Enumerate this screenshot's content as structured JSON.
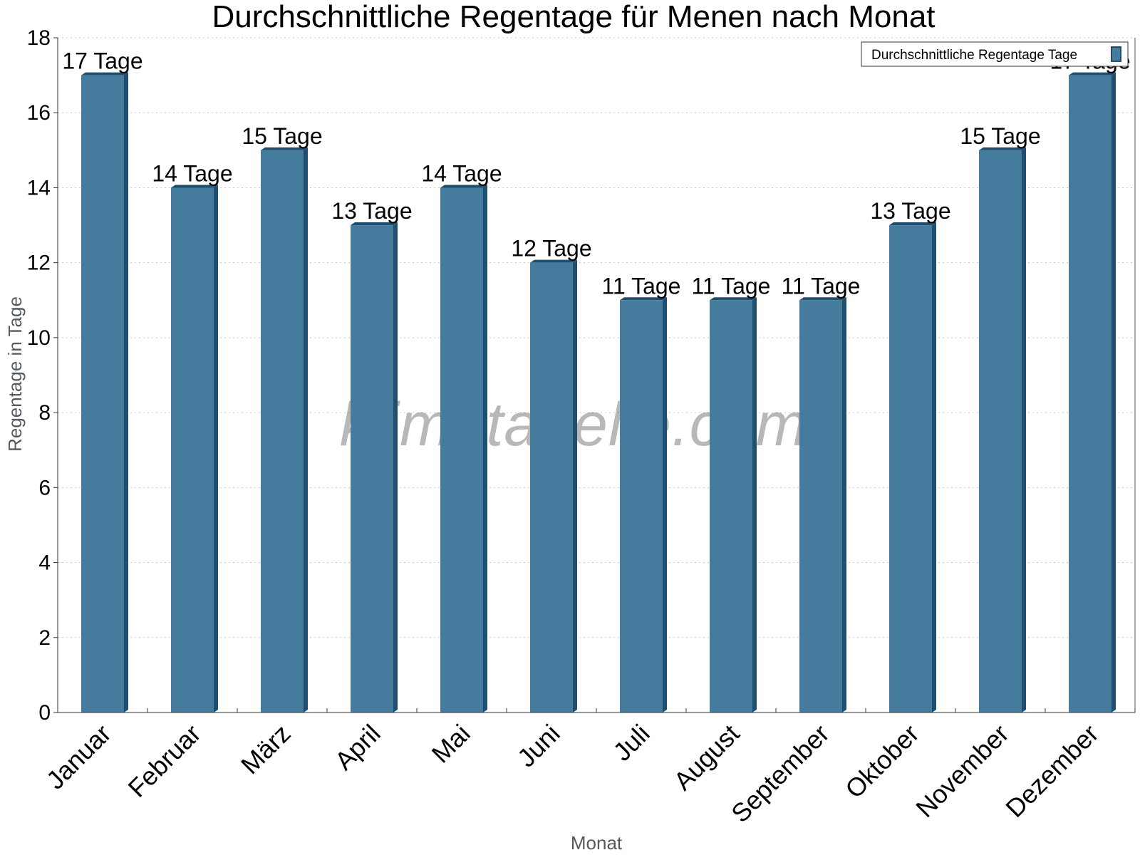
{
  "chart_data": {
    "type": "bar",
    "title": "Durchschnittliche Regentage für Menen nach Monat",
    "xlabel": "Monat",
    "ylabel": "Regentage in Tage",
    "ylim": [
      0,
      18
    ],
    "yticks": [
      0,
      2,
      4,
      6,
      8,
      10,
      12,
      14,
      16,
      18
    ],
    "grid": true,
    "legend_position": "top-right",
    "categories": [
      "Januar",
      "Februar",
      "März",
      "April",
      "Mai",
      "Juni",
      "Juli",
      "August",
      "September",
      "Oktober",
      "November",
      "Dezember"
    ],
    "series": [
      {
        "name": "Durchschnittliche Regentage Tage",
        "values": [
          17,
          14,
          15,
          13,
          14,
          12,
          11,
          11,
          11,
          13,
          15,
          17
        ],
        "labels": [
          "17 Tage",
          "14 Tage",
          "15 Tage",
          "13 Tage",
          "14 Tage",
          "12 Tage",
          "11 Tage",
          "11 Tage",
          "11 Tage",
          "13 Tage",
          "15 Tage",
          "17 Tage"
        ],
        "color": "#457b9d",
        "side_color": "#1f4e6e"
      }
    ]
  },
  "watermark": "klimatabelle.com"
}
